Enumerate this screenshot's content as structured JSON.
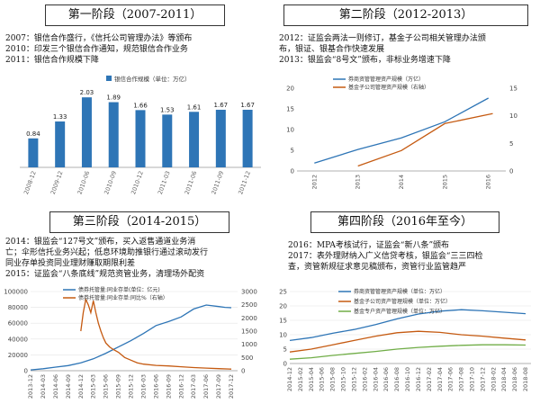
{
  "panels": [
    {
      "title": "第一阶段（2007-2011）",
      "lines": [
        "2007：银信合作盛行，《信托公司管理办法》等颁布",
        "2010：印发三个银信合作通知，规范银信合作业务",
        "2011：银信合作规模下降"
      ]
    },
    {
      "title": "第二阶段（2012-2013）",
      "lines": [
        "2012：证监会两法一则修订，基金子公司相关管理办法颁",
        "布，银证、银基合作快速发展",
        "2013：银监会“8号文”颁布，非标业务增速下降"
      ]
    },
    {
      "title": "第三阶段（2014-2015）",
      "lines": [
        "2014：银监会“127号文”颁布，买入返售通道业务消",
        "亡；伞形信托业务兴起；低息环境助推银行通过滚动发行",
        "同业存单投资同业理财赚取期限利差",
        "2015：证监会“八条底线”规范资管业务，清理场外配资"
      ]
    },
    {
      "title": "第四阶段（2016年至今）",
      "lines": [
        "2016：MPA考核试行，证监会“新八条”颁布",
        "2017：表外理财纳入广义信贷考核，银监会“三三四检",
        "查，资管新规征求意见稿颁布，资管行业监管趋严"
      ]
    }
  ],
  "chart_data": [
    {
      "type": "bar",
      "legend": "银信合作规模（单位：万亿）",
      "categories": [
        "2008-12",
        "2009-12",
        "2010-06",
        "2010-09",
        "2010-12",
        "2011-03",
        "2011-06",
        "2011-09",
        "2011-12"
      ],
      "values": [
        0.84,
        1.33,
        2.03,
        1.89,
        1.66,
        1.53,
        1.61,
        1.67,
        1.67
      ],
      "value_labels": [
        "0.84",
        "1.33",
        "2.03",
        "1.89",
        "1.66",
        "1.53",
        "1.61",
        "1.67",
        "1.67"
      ],
      "ylim": [
        0,
        2.4
      ],
      "color": "#2e75b6"
    },
    {
      "type": "line",
      "categories": [
        "2012",
        "2013",
        "2014",
        "2015",
        "2016"
      ],
      "series": [
        {
          "name": "券商资管管理资产规模（万亿）",
          "axis": "left",
          "color": "#2e75b6",
          "x": [
            2012,
            2013,
            2014,
            2015,
            2016
          ],
          "values": [
            1.9,
            5.2,
            8.0,
            11.9,
            17.6
          ]
        },
        {
          "name": "基金子公司管理资产规模（右轴）",
          "axis": "right",
          "color": "#c55a11",
          "x": [
            2013,
            2014,
            2015,
            2016.1
          ],
          "values": [
            0.9,
            3.7,
            8.6,
            10.4
          ]
        }
      ],
      "y_left": {
        "ticks": [
          0,
          5,
          10,
          15,
          20
        ],
        "lim": [
          0,
          20
        ]
      },
      "y_right": {
        "ticks": [
          0,
          5,
          10,
          15
        ],
        "lim": [
          0,
          15
        ]
      }
    },
    {
      "type": "line",
      "categories": [
        "2013-12",
        "2014-03",
        "2014-06",
        "2014-09",
        "2014-12",
        "2015-03",
        "2015-06",
        "2015-09",
        "2015-12",
        "2016-03",
        "2016-06",
        "2016-09",
        "2016-12",
        "2017-03",
        "2017-06",
        "2017-09",
        "2017-12"
      ],
      "series": [
        {
          "name": "债券托管量:同业存单(单位：亿元)",
          "axis": "left",
          "color": "#2e75b6",
          "x": [
            0,
            1,
            2,
            3,
            4,
            5,
            6,
            7,
            8,
            9,
            10,
            11,
            12,
            13,
            14,
            15,
            15.5,
            16
          ],
          "values": [
            1000,
            2500,
            4500,
            6500,
            10000,
            15000,
            22000,
            30000,
            38000,
            47000,
            57000,
            62000,
            68000,
            78000,
            83000,
            81000,
            80000,
            79500
          ]
        },
        {
          "name": "债券托管量:同业存单:同比%（右轴）",
          "axis": "right",
          "color": "#c55a11",
          "x": [
            4,
            4.2,
            4.4,
            4.6,
            4.8,
            5,
            5.2,
            5.4,
            5.6,
            5.8,
            6,
            6.3,
            6.6,
            7,
            7.5,
            8,
            8.5,
            9,
            10,
            11,
            12,
            13,
            14,
            15,
            16
          ],
          "values": [
            1500,
            2200,
            2700,
            2500,
            2200,
            2650,
            2200,
            1800,
            1500,
            1250,
            1050,
            900,
            800,
            700,
            500,
            400,
            300,
            250,
            200,
            180,
            150,
            120,
            100,
            80,
            60
          ]
        }
      ],
      "y_left": {
        "ticks": [
          0,
          20000,
          40000,
          60000,
          80000,
          100000
        ],
        "tick_labels": [
          "0",
          "20000",
          "40000",
          "60000",
          "80000",
          "100000"
        ],
        "lim": [
          0,
          100000
        ]
      },
      "y_right": {
        "ticks": [
          0,
          500,
          1000,
          1500,
          2000,
          2500,
          3000
        ],
        "lim": [
          0,
          3000
        ]
      }
    },
    {
      "type": "line",
      "categories": [
        "2014-12",
        "2015-02",
        "2015-04",
        "2015-06",
        "2015-08",
        "2015-10",
        "2015-12",
        "2016-02",
        "2016-04",
        "2016-06",
        "2016-08",
        "2016-10",
        "2016-12",
        "2017-02",
        "2017-04",
        "2017-06",
        "2017-08",
        "2017-10",
        "2017-12",
        "2018-02",
        "2018-04",
        "2018-06",
        "2018-08"
      ],
      "series": [
        {
          "name": "券商资管管理资产规模（单位：万亿）",
          "axis": "left",
          "color": "#2e75b6",
          "x": [
            0,
            2,
            4,
            6,
            8,
            10,
            12,
            14,
            16,
            18,
            20,
            22
          ],
          "values": [
            8,
            9,
            10.5,
            11.8,
            13.5,
            15.5,
            17.2,
            18.2,
            18.7,
            18.3,
            17.8,
            17.3
          ]
        },
        {
          "name": "基金子公司资产管理规模（单位：万亿）",
          "axis": "left",
          "color": "#c55a11",
          "x": [
            0,
            2,
            4,
            6,
            8,
            10,
            12,
            14,
            16,
            18,
            20,
            22
          ],
          "values": [
            4,
            5,
            6.5,
            8,
            9.5,
            10.7,
            11.2,
            10.8,
            10,
            9.5,
            8.8,
            8.2
          ]
        },
        {
          "name": "基金专户资产管理规模（单位：万亿）",
          "axis": "left",
          "color": "#70ad47",
          "x": [
            0,
            2,
            4,
            6,
            8,
            10,
            12,
            14,
            16,
            18,
            20,
            22
          ],
          "values": [
            1.5,
            2,
            2.8,
            3.5,
            4.2,
            5,
            5.6,
            6,
            6.3,
            6.5,
            6.5,
            6.4
          ]
        }
      ],
      "y_left": {
        "ticks": [
          0,
          5,
          10,
          15,
          20,
          25
        ],
        "lim": [
          0,
          25
        ]
      }
    }
  ]
}
